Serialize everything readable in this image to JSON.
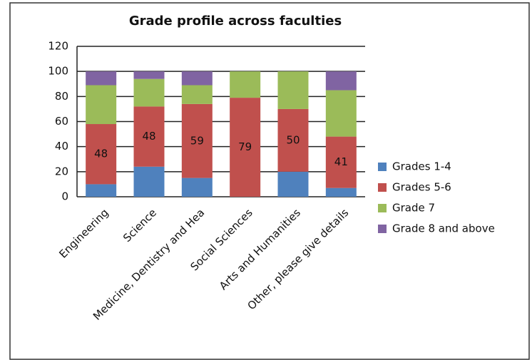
{
  "chart_data": {
    "type": "stacked_bar",
    "title": "Grade profile across faculties",
    "categories": [
      "Engineering",
      "Science",
      "Medicine, Dentistry and Hea",
      "Social Sciences",
      "Arts and Humanities",
      "Other, please give details"
    ],
    "series": [
      {
        "name": "Grades 1-4",
        "color": "#4f81bd",
        "values": [
          10,
          24,
          15,
          0,
          20,
          7
        ]
      },
      {
        "name": "Grades 5-6",
        "color": "#c0504d",
        "values": [
          48,
          48,
          59,
          79,
          50,
          41
        ]
      },
      {
        "name": "Grade 7",
        "color": "#9bbb59",
        "values": [
          31,
          22,
          15,
          21,
          30,
          37
        ]
      },
      {
        "name": "Grade 8 and above",
        "color": "#8064a2",
        "values": [
          11,
          6,
          11,
          0,
          0,
          15
        ]
      }
    ],
    "labeled_series": 1,
    "ylim": [
      0,
      120
    ],
    "yticks": [
      0,
      20,
      40,
      60,
      80,
      100,
      120
    ],
    "grid": true,
    "legend": "right"
  }
}
